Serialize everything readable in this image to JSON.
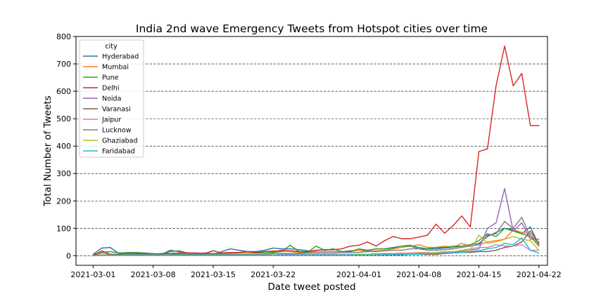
{
  "chart_data": {
    "type": "line",
    "title": "India 2nd wave Emergency Tweets from Hotspot cities over time",
    "xlabel": "Date tweet posted",
    "ylabel": "Total Number of Tweets",
    "xlim": [
      "2021-02-27",
      "2021-04-23"
    ],
    "ylim": [
      -35,
      800
    ],
    "x_ticks": [
      "2021-03-01",
      "2021-03-08",
      "2021-03-15",
      "2021-03-22",
      "2021-04-01",
      "2021-04-08",
      "2021-04-15",
      "2021-04-22"
    ],
    "y_ticks": [
      0,
      100,
      200,
      300,
      400,
      500,
      600,
      700,
      800
    ],
    "grid": "horizontal-dashed",
    "legend": {
      "title": "city",
      "placement": "top-left"
    },
    "x": [
      "2021-03-01",
      "2021-03-02",
      "2021-03-03",
      "2021-03-04",
      "2021-03-05",
      "2021-03-06",
      "2021-03-07",
      "2021-03-08",
      "2021-03-09",
      "2021-03-10",
      "2021-03-11",
      "2021-03-12",
      "2021-03-13",
      "2021-03-14",
      "2021-03-15",
      "2021-03-16",
      "2021-03-17",
      "2021-03-18",
      "2021-03-19",
      "2021-03-20",
      "2021-03-21",
      "2021-03-22",
      "2021-03-23",
      "2021-03-24",
      "2021-03-25",
      "2021-03-26",
      "2021-03-27",
      "2021-03-28",
      "2021-03-29",
      "2021-03-30",
      "2021-03-31",
      "2021-04-01",
      "2021-04-02",
      "2021-04-03",
      "2021-04-04",
      "2021-04-05",
      "2021-04-06",
      "2021-04-07",
      "2021-04-08",
      "2021-04-09",
      "2021-04-10",
      "2021-04-11",
      "2021-04-12",
      "2021-04-13",
      "2021-04-14",
      "2021-04-15",
      "2021-04-16",
      "2021-04-17",
      "2021-04-18",
      "2021-04-19",
      "2021-04-20",
      "2021-04-21",
      "2021-04-22"
    ],
    "series": [
      {
        "name": "Hyderabad",
        "color": "#1f77b4",
        "values": [
          5,
          28,
          30,
          8,
          5,
          8,
          6,
          5,
          5,
          20,
          15,
          10,
          8,
          8,
          5,
          15,
          25,
          20,
          15,
          15,
          20,
          28,
          25,
          25,
          22,
          18,
          15,
          15,
          15,
          15,
          18,
          20,
          18,
          25,
          25,
          30,
          35,
          38,
          30,
          25,
          25,
          28,
          30,
          35,
          40,
          45,
          70,
          85,
          100,
          95,
          80,
          105,
          40
        ]
      },
      {
        "name": "Mumbai",
        "color": "#ff7f0e",
        "values": [
          0,
          10,
          5,
          3,
          5,
          3,
          5,
          5,
          3,
          5,
          8,
          8,
          5,
          5,
          5,
          8,
          8,
          10,
          10,
          10,
          15,
          18,
          15,
          15,
          12,
          12,
          15,
          15,
          15,
          15,
          15,
          20,
          15,
          18,
          20,
          25,
          30,
          35,
          40,
          30,
          30,
          35,
          30,
          45,
          35,
          40,
          50,
          55,
          60,
          95,
          85,
          80,
          40
        ]
      },
      {
        "name": "Pune",
        "color": "#2ca02c",
        "values": [
          5,
          12,
          15,
          10,
          12,
          12,
          10,
          8,
          5,
          15,
          18,
          10,
          8,
          10,
          8,
          10,
          12,
          12,
          15,
          10,
          10,
          12,
          15,
          38,
          15,
          12,
          35,
          20,
          25,
          15,
          15,
          25,
          20,
          25,
          25,
          28,
          35,
          35,
          25,
          25,
          30,
          30,
          35,
          35,
          40,
          55,
          80,
          70,
          100,
          90,
          80,
          70,
          35
        ]
      },
      {
        "name": "Delhi",
        "color": "#d62728",
        "values": [
          0,
          18,
          5,
          5,
          8,
          8,
          8,
          5,
          8,
          8,
          10,
          10,
          10,
          8,
          18,
          10,
          12,
          12,
          15,
          12,
          15,
          15,
          20,
          18,
          15,
          15,
          20,
          22,
          22,
          25,
          35,
          38,
          50,
          35,
          55,
          70,
          62,
          62,
          68,
          75,
          115,
          82,
          110,
          145,
          105,
          380,
          390,
          620,
          765,
          620,
          665,
          475,
          475
        ]
      },
      {
        "name": "Noida",
        "color": "#9467bd",
        "values": [
          0,
          3,
          2,
          2,
          2,
          2,
          3,
          2,
          2,
          3,
          2,
          2,
          2,
          3,
          2,
          2,
          2,
          2,
          2,
          2,
          2,
          3,
          3,
          3,
          3,
          3,
          3,
          3,
          3,
          3,
          3,
          3,
          3,
          3,
          5,
          5,
          5,
          5,
          8,
          10,
          10,
          12,
          12,
          15,
          20,
          25,
          100,
          120,
          245,
          90,
          120,
          60,
          60
        ]
      },
      {
        "name": "Varanasi",
        "color": "#8c564b",
        "values": [
          0,
          1,
          1,
          1,
          1,
          1,
          1,
          1,
          1,
          1,
          1,
          1,
          1,
          1,
          1,
          1,
          1,
          1,
          1,
          1,
          1,
          2,
          2,
          2,
          2,
          2,
          2,
          2,
          2,
          2,
          2,
          3,
          3,
          3,
          3,
          3,
          3,
          5,
          5,
          5,
          5,
          8,
          10,
          12,
          12,
          15,
          15,
          20,
          30,
          35,
          50,
          90,
          45
        ]
      },
      {
        "name": "Jaipur",
        "color": "#e377c2",
        "values": [
          0,
          2,
          2,
          2,
          2,
          2,
          3,
          2,
          2,
          2,
          3,
          3,
          3,
          2,
          3,
          3,
          3,
          3,
          3,
          3,
          3,
          3,
          5,
          5,
          5,
          5,
          5,
          5,
          5,
          5,
          5,
          5,
          5,
          8,
          8,
          8,
          10,
          10,
          12,
          12,
          10,
          12,
          15,
          20,
          25,
          30,
          30,
          40,
          35,
          35,
          40,
          20,
          20
        ]
      },
      {
        "name": "Lucknow",
        "color": "#7f7f7f",
        "values": [
          0,
          3,
          3,
          3,
          5,
          5,
          5,
          5,
          3,
          5,
          5,
          5,
          5,
          5,
          5,
          5,
          5,
          5,
          5,
          5,
          5,
          8,
          8,
          8,
          8,
          10,
          10,
          10,
          10,
          12,
          12,
          12,
          15,
          15,
          18,
          20,
          20,
          25,
          25,
          20,
          20,
          22,
          25,
          30,
          35,
          40,
          75,
          80,
          125,
          100,
          140,
          70,
          50
        ]
      },
      {
        "name": "Ghaziabad",
        "color": "#bcbd22",
        "values": [
          0,
          2,
          2,
          2,
          2,
          2,
          2,
          2,
          2,
          2,
          2,
          2,
          2,
          2,
          2,
          2,
          2,
          2,
          2,
          2,
          2,
          3,
          3,
          3,
          3,
          3,
          3,
          3,
          3,
          3,
          3,
          5,
          5,
          5,
          5,
          5,
          8,
          8,
          10,
          10,
          12,
          15,
          15,
          18,
          20,
          75,
          45,
          50,
          60,
          70,
          60,
          55,
          20
        ]
      },
      {
        "name": "Faridabad",
        "color": "#17becf",
        "values": [
          0,
          2,
          2,
          2,
          2,
          2,
          2,
          2,
          2,
          2,
          2,
          2,
          2,
          2,
          2,
          2,
          2,
          2,
          2,
          2,
          2,
          2,
          3,
          3,
          3,
          3,
          3,
          3,
          3,
          3,
          3,
          3,
          3,
          3,
          5,
          5,
          5,
          5,
          5,
          8,
          8,
          10,
          10,
          12,
          15,
          18,
          25,
          30,
          45,
          40,
          65,
          20,
          10
        ]
      }
    ]
  }
}
